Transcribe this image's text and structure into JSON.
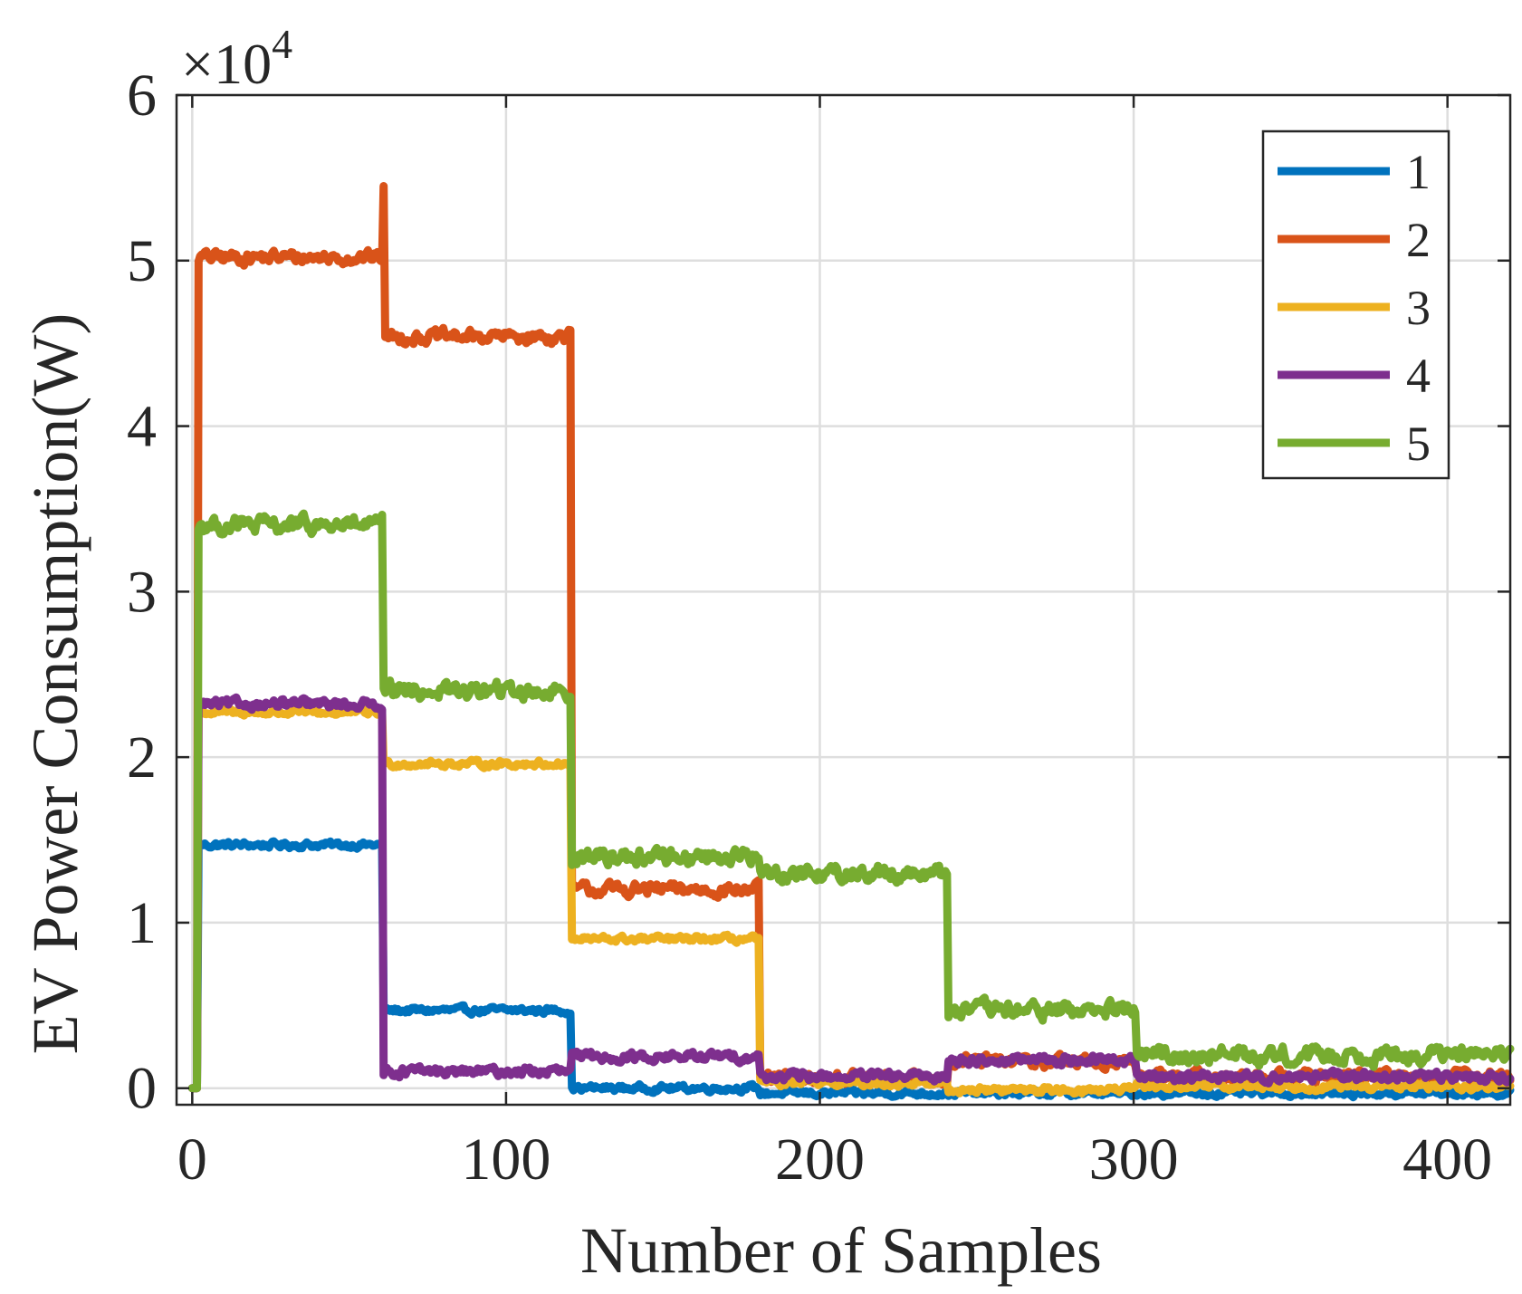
{
  "chart_data": {
    "type": "line",
    "title": "",
    "xlabel": "Number of Samples",
    "ylabel": "EV Power Consumption(W)",
    "xlim": [
      -5,
      420
    ],
    "ylim": [
      -1000,
      60000
    ],
    "xticks": [
      0,
      100,
      200,
      300,
      400
    ],
    "yticks": [
      0,
      10000,
      20000,
      30000,
      40000,
      50000,
      60000
    ],
    "xtick_labels": [
      "0",
      "100",
      "200",
      "300",
      "400"
    ],
    "ytick_labels": [
      "0",
      "1",
      "2",
      "3",
      "4",
      "5",
      "6"
    ],
    "y_multiplier_label": "×10",
    "y_multiplier_exponent": "4",
    "grid": true,
    "legend_position": "top-right",
    "series": [
      {
        "name": "1",
        "color": "#0072BD",
        "noise": 350,
        "segments": [
          {
            "x0": 0,
            "x1": 2,
            "y": 0
          },
          {
            "x0": 2,
            "x1": 61,
            "y": 14700
          },
          {
            "x0": 61,
            "x1": 121,
            "y": 4700
          },
          {
            "x0": 121,
            "x1": 181,
            "y": 0
          },
          {
            "x0": 181,
            "x1": 420,
            "y": -300
          }
        ]
      },
      {
        "name": "2",
        "color": "#D95319",
        "noise": 700,
        "segments": [
          {
            "x0": 0,
            "x1": 2,
            "y": 0
          },
          {
            "x0": 2,
            "x1": 61,
            "y": 50200
          },
          {
            "x0": 61,
            "x1": 121,
            "y": 45400
          },
          {
            "x0": 121,
            "x1": 181,
            "y": 12000
          },
          {
            "x0": 181,
            "x1": 241,
            "y": 600
          },
          {
            "x0": 241,
            "x1": 301,
            "y": 1600
          },
          {
            "x0": 301,
            "x1": 420,
            "y": 700
          }
        ],
        "spikes": [
          {
            "x": 61,
            "y": 54500
          }
        ]
      },
      {
        "name": "3",
        "color": "#EDB120",
        "noise": 350,
        "segments": [
          {
            "x0": 0,
            "x1": 2,
            "y": 0
          },
          {
            "x0": 2,
            "x1": 61,
            "y": 22700
          },
          {
            "x0": 61,
            "x1": 121,
            "y": 19600
          },
          {
            "x0": 121,
            "x1": 181,
            "y": 9000
          },
          {
            "x0": 181,
            "x1": 241,
            "y": 300
          },
          {
            "x0": 241,
            "x1": 301,
            "y": -100
          },
          {
            "x0": 301,
            "x1": 420,
            "y": 100
          }
        ]
      },
      {
        "name": "4",
        "color": "#7E2F8E",
        "noise": 500,
        "segments": [
          {
            "x0": 0,
            "x1": 2,
            "y": 0
          },
          {
            "x0": 2,
            "x1": 61,
            "y": 23200
          },
          {
            "x0": 61,
            "x1": 121,
            "y": 1000
          },
          {
            "x0": 121,
            "x1": 181,
            "y": 1900
          },
          {
            "x0": 181,
            "x1": 241,
            "y": 700
          },
          {
            "x0": 241,
            "x1": 301,
            "y": 1700
          },
          {
            "x0": 301,
            "x1": 420,
            "y": 700
          }
        ]
      },
      {
        "name": "5",
        "color": "#77AC30",
        "noise": 900,
        "segments": [
          {
            "x0": 0,
            "x1": 2,
            "y": 0
          },
          {
            "x0": 2,
            "x1": 61,
            "y": 34000
          },
          {
            "x0": 61,
            "x1": 121,
            "y": 24000
          },
          {
            "x0": 121,
            "x1": 181,
            "y": 14000
          },
          {
            "x0": 181,
            "x1": 241,
            "y": 13000
          },
          {
            "x0": 241,
            "x1": 301,
            "y": 4700
          },
          {
            "x0": 301,
            "x1": 420,
            "y": 2000
          }
        ]
      }
    ]
  }
}
